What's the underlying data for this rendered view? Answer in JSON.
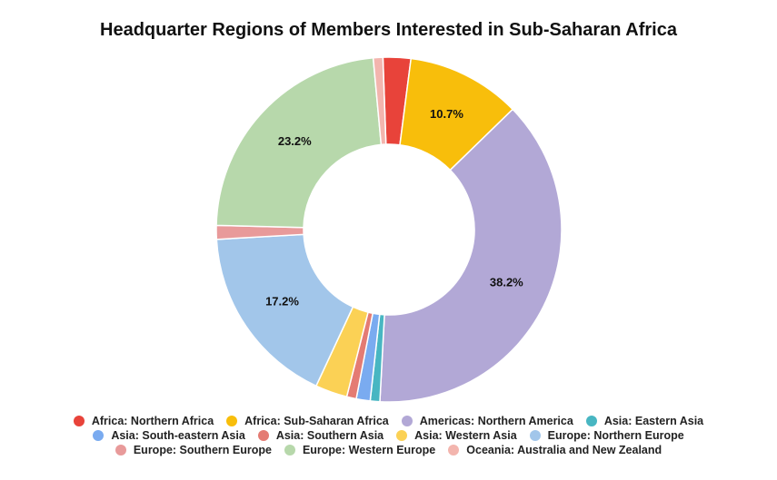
{
  "chart_data": {
    "type": "pie",
    "title": "Headquarter Regions of Members Interested in Sub-Saharan Africa",
    "legend_position": "bottom",
    "slices": [
      {
        "label": "Africa: Northern Africa",
        "value": 2.6,
        "color": "#e8433a",
        "display": ""
      },
      {
        "label": "Africa: Sub-Saharan Africa",
        "value": 10.7,
        "color": "#f8be0b",
        "display": "10.7%"
      },
      {
        "label": "Americas: Northern America",
        "value": 38.2,
        "color": "#b2a8d6",
        "display": "38.2%"
      },
      {
        "label": "Asia: Eastern Asia",
        "value": 0.9,
        "color": "#48b6c2",
        "display": ""
      },
      {
        "label": "Asia: South-eastern Asia",
        "value": 1.3,
        "color": "#7aabf0",
        "display": ""
      },
      {
        "label": "Asia: Southern Asia",
        "value": 0.9,
        "color": "#e47b73",
        "display": ""
      },
      {
        "label": "Asia: Western Asia",
        "value": 3.0,
        "color": "#fbd155",
        "display": ""
      },
      {
        "label": "Europe: Northern Europe",
        "value": 17.2,
        "color": "#a2c6ea",
        "display": "17.2%"
      },
      {
        "label": "Europe: Southern Europe",
        "value": 1.3,
        "color": "#e89a9a",
        "display": ""
      },
      {
        "label": "Europe: Western Europe",
        "value": 23.2,
        "color": "#b7d8ab",
        "display": "23.2%"
      },
      {
        "label": "Oceania: Australia and New Zealand",
        "value": 0.9,
        "color": "#f3b5ae",
        "display": ""
      }
    ]
  }
}
